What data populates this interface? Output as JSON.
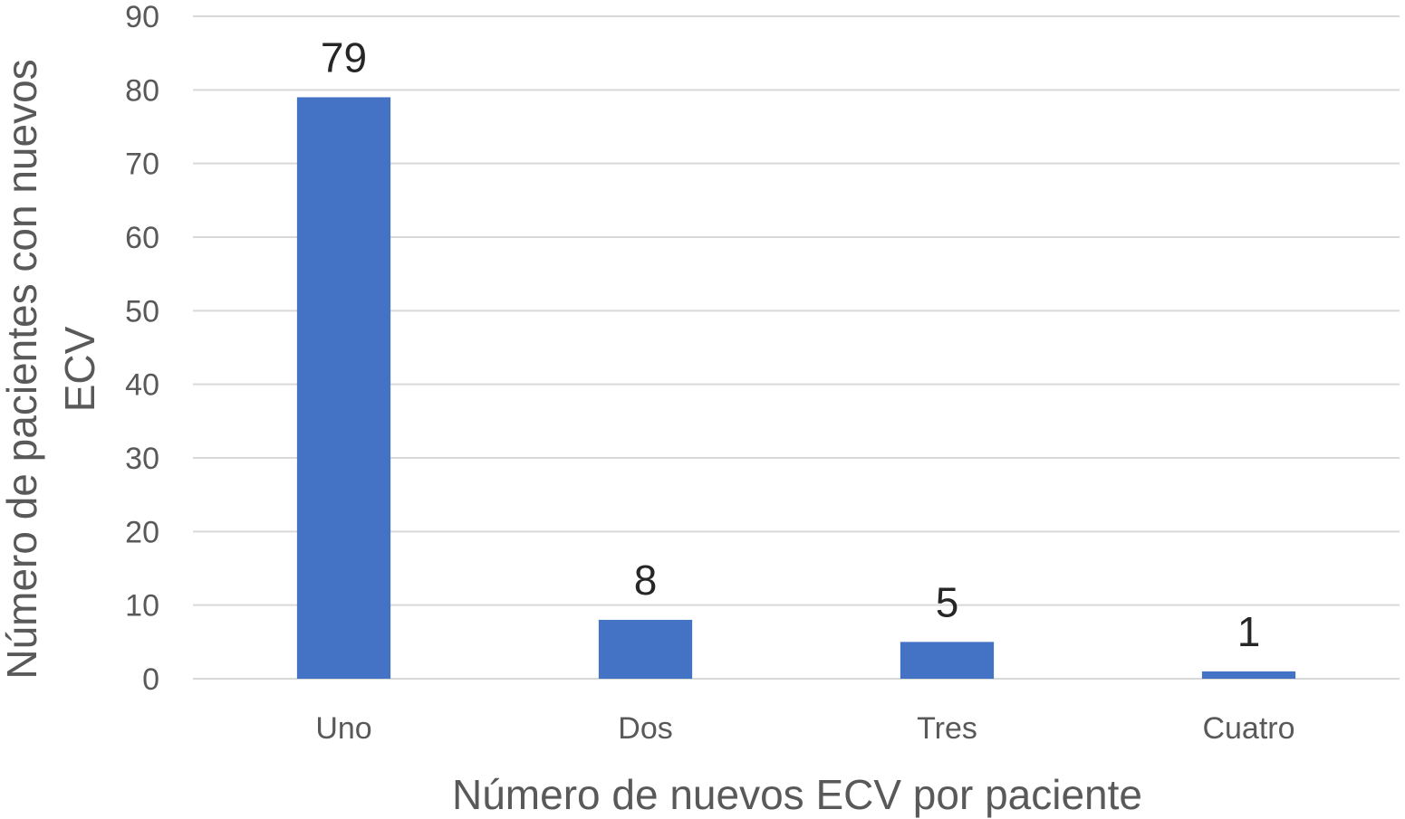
{
  "chart_data": {
    "type": "bar",
    "categories": [
      "Uno",
      "Dos",
      "Tres",
      "Cuatro"
    ],
    "values": [
      79,
      8,
      5,
      1
    ],
    "data_labels": [
      "79",
      "8",
      "5",
      "1"
    ],
    "title": "",
    "xlabel": "Número de nuevos ECV por paciente",
    "ylabel_lines": [
      "Número de pacientes con nuevos",
      "ECV"
    ],
    "ylim": [
      0,
      90
    ],
    "yticks": [
      0,
      10,
      20,
      30,
      40,
      50,
      60,
      70,
      80,
      90
    ],
    "grid": true,
    "legend": "none",
    "bar_color": "#4472C4"
  }
}
